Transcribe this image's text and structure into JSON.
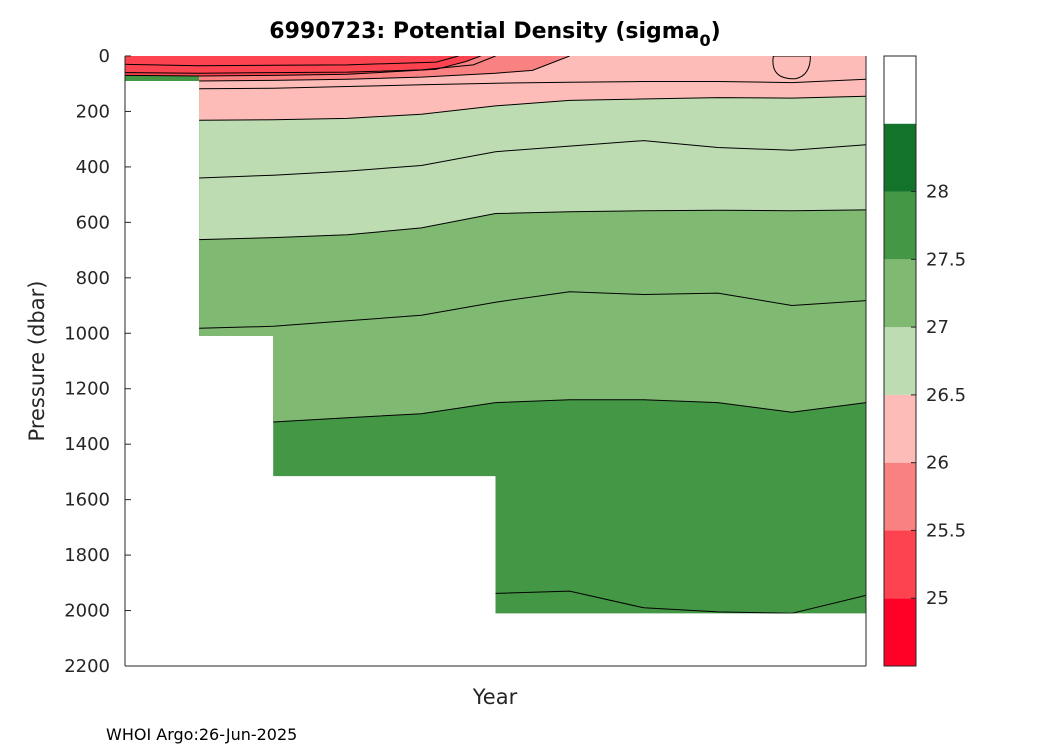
{
  "chart_data": {
    "type": "filled-contour",
    "title_main": "6990723: Potential Density (sigma",
    "title_sub": "0",
    "title_close": ")",
    "xlabel": "Year",
    "ylabel": "Pressure (dbar)",
    "ylim": [
      0,
      2200
    ],
    "y_reversed": true,
    "y_ticks": [
      0,
      200,
      400,
      600,
      800,
      1000,
      1200,
      1400,
      1600,
      1800,
      2000,
      2200
    ],
    "x_ticks": [],
    "x_range": [
      0,
      1
    ],
    "colorbar": {
      "min": 24.5,
      "max": 29,
      "ticks": [
        25,
        25.5,
        26,
        26.5,
        27,
        27.5,
        28
      ],
      "bands": [
        {
          "from": 24.5,
          "to": 25.0,
          "color": "#ff0027"
        },
        {
          "from": 25.0,
          "to": 25.5,
          "color": "#fd4350"
        },
        {
          "from": 25.5,
          "to": 26.0,
          "color": "#f98181"
        },
        {
          "from": 26.0,
          "to": 26.5,
          "color": "#fdbcb8"
        },
        {
          "from": 26.5,
          "to": 27.0,
          "color": "#bedcb2"
        },
        {
          "from": 27.0,
          "to": 27.5,
          "color": "#7fb972"
        },
        {
          "from": 27.5,
          "to": 28.0,
          "color": "#439745"
        },
        {
          "from": 28.0,
          "to": 28.5,
          "color": "#13732b"
        }
      ]
    },
    "data_extent": [
      [
        0.0,
        90
      ],
      [
        0.1,
        1010
      ],
      [
        0.2,
        1515
      ],
      [
        0.3,
        1515
      ],
      [
        0.5,
        2010
      ],
      [
        1.0,
        2010
      ]
    ],
    "contour_levels": [
      {
        "level": 25.5,
        "depth": [
          [
            0.0,
            70
          ],
          [
            0.1,
            72
          ],
          [
            0.2,
            70
          ],
          [
            0.3,
            66
          ],
          [
            0.42,
            48
          ],
          [
            0.46,
            20
          ],
          [
            0.48,
            0
          ]
        ]
      },
      {
        "level": 26.0,
        "depth": [
          [
            0.1,
            90
          ],
          [
            0.2,
            88
          ],
          [
            0.3,
            84
          ],
          [
            0.4,
            76
          ],
          [
            0.5,
            62
          ],
          [
            0.55,
            52
          ],
          [
            0.6,
            0
          ]
        ]
      },
      {
        "level": 26.5,
        "depth": [
          [
            0.1,
            232
          ],
          [
            0.2,
            230
          ],
          [
            0.3,
            225
          ],
          [
            0.4,
            210
          ],
          [
            0.5,
            180
          ],
          [
            0.6,
            160
          ],
          [
            0.8,
            150
          ],
          [
            0.9,
            152
          ],
          [
            1.0,
            145
          ]
        ]
      },
      {
        "level": 27.0,
        "depth": [
          [
            0.1,
            662
          ],
          [
            0.2,
            655
          ],
          [
            0.3,
            645
          ],
          [
            0.4,
            620
          ],
          [
            0.5,
            568
          ],
          [
            0.6,
            562
          ],
          [
            0.7,
            558
          ],
          [
            0.8,
            556
          ],
          [
            0.9,
            558
          ],
          [
            1.0,
            555
          ]
        ]
      },
      {
        "level": 27.5,
        "depth": [
          [
            0.1,
            1335
          ],
          [
            0.2,
            1320
          ],
          [
            0.3,
            1305
          ],
          [
            0.4,
            1290
          ],
          [
            0.5,
            1250
          ],
          [
            0.6,
            1240
          ],
          [
            0.7,
            1240
          ],
          [
            0.8,
            1250
          ],
          [
            0.9,
            1285
          ],
          [
            1.0,
            1250
          ]
        ]
      }
    ],
    "isopycnals": [
      {
        "depth": [
          [
            0.0,
            30
          ],
          [
            0.1,
            35
          ],
          [
            0.2,
            33
          ],
          [
            0.3,
            32
          ],
          [
            0.42,
            22
          ],
          [
            0.45,
            0
          ]
        ]
      },
      {
        "depth": [
          [
            0.0,
            60
          ],
          [
            0.1,
            62
          ],
          [
            0.2,
            60
          ],
          [
            0.3,
            58
          ],
          [
            0.4,
            50
          ],
          [
            0.47,
            32
          ],
          [
            0.5,
            0
          ]
        ]
      },
      {
        "depth": [
          [
            0.1,
            118
          ],
          [
            0.2,
            116
          ],
          [
            0.3,
            110
          ],
          [
            0.4,
            104
          ],
          [
            0.5,
            98
          ],
          [
            0.6,
            95
          ],
          [
            0.7,
            92
          ],
          [
            0.8,
            92
          ],
          [
            0.9,
            96
          ],
          [
            1.0,
            84
          ]
        ]
      },
      {
        "depth": [
          [
            0.1,
            440
          ],
          [
            0.2,
            430
          ],
          [
            0.3,
            415
          ],
          [
            0.4,
            395
          ],
          [
            0.5,
            345
          ],
          [
            0.6,
            325
          ],
          [
            0.7,
            305
          ],
          [
            0.8,
            330
          ],
          [
            0.9,
            340
          ],
          [
            1.0,
            320
          ]
        ]
      },
      {
        "depth": [
          [
            0.1,
            982
          ],
          [
            0.2,
            975
          ],
          [
            0.3,
            955
          ],
          [
            0.4,
            935
          ],
          [
            0.5,
            888
          ],
          [
            0.6,
            850
          ],
          [
            0.7,
            860
          ],
          [
            0.8,
            855
          ],
          [
            0.9,
            900
          ],
          [
            1.0,
            882
          ]
        ]
      },
      {
        "depth": [
          [
            0.5,
            1938
          ],
          [
            0.6,
            1930
          ],
          [
            0.7,
            1990
          ],
          [
            0.8,
            2005
          ],
          [
            0.9,
            2010
          ],
          [
            1.0,
            1945
          ]
        ]
      }
    ]
  },
  "footer": {
    "credit": "WHOI Argo:26-Jun-2025"
  }
}
